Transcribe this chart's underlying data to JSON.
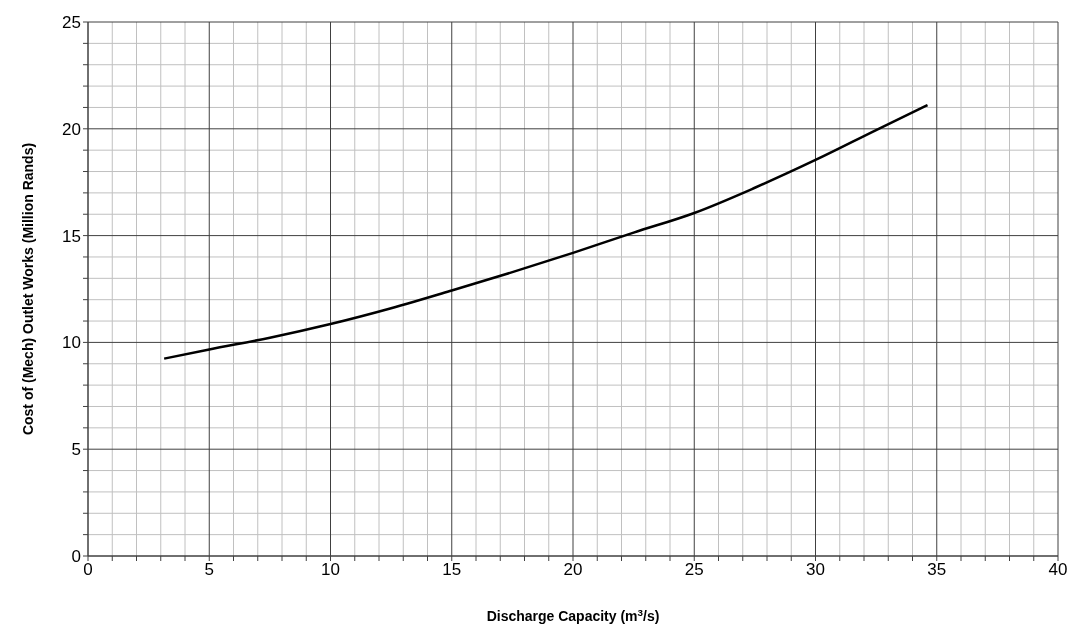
{
  "chart_data": {
    "type": "line",
    "xlabel": "Discharge Capacity (m$^{3}$/s)",
    "ylabel": "Cost of (Mech) Outlet Works (Million Rands)",
    "x": [
      3.14,
      5,
      7.5,
      10,
      12.5,
      15,
      17.5,
      20,
      22.5,
      25,
      27.5,
      30,
      32.5,
      34.62
    ],
    "series": [
      {
        "color": "#000000",
        "values": [
          9.24,
          9.67,
          10.22,
          10.86,
          11.6,
          12.43,
          13.29,
          14.19,
          15.14,
          16.06,
          17.24,
          18.54,
          19.94,
          21.11
        ]
      }
    ],
    "xlim": [
      0,
      40
    ],
    "xticks": [
      0,
      {
        "value": 1,
        "label": null
      },
      {
        "value": 2,
        "label": null
      },
      {
        "value": 3,
        "label": null
      },
      {
        "value": 4,
        "label": null
      },
      5,
      {
        "value": 6,
        "label": null
      },
      {
        "value": 7,
        "label": null
      },
      {
        "value": 8,
        "label": null
      },
      {
        "value": 9,
        "label": null
      },
      10,
      {
        "value": 11,
        "label": null
      },
      {
        "value": 12,
        "label": null
      },
      {
        "value": 13,
        "label": null
      },
      {
        "value": 14,
        "label": null
      },
      15,
      {
        "value": 16,
        "label": null
      },
      {
        "value": 17,
        "label": null
      },
      {
        "value": 18,
        "label": null
      },
      {
        "value": 19,
        "label": null
      },
      20,
      {
        "value": 21,
        "label": null
      },
      {
        "value": 22,
        "label": null
      },
      {
        "value": 23,
        "label": null
      },
      {
        "value": 24,
        "label": null
      },
      25,
      {
        "value": 26,
        "label": null
      },
      {
        "value": 27,
        "label": null
      },
      {
        "value": 28,
        "label": null
      },
      {
        "value": 29,
        "label": null
      },
      30,
      {
        "value": 31,
        "label": null
      },
      {
        "value": 32,
        "label": null
      },
      {
        "value": 33,
        "label": null
      },
      {
        "value": 34,
        "label": null
      },
      35,
      {
        "value": 36,
        "label": null
      },
      {
        "value": 37,
        "label": null
      },
      {
        "value": 38,
        "label": null
      },
      {
        "value": 39,
        "label": null
      },
      40
    ],
    "ylim": [
      0,
      25
    ],
    "yticks": [
      0,
      {
        "value": 1,
        "label": null
      },
      {
        "value": 2,
        "label": null
      },
      {
        "value": 3,
        "label": null
      },
      {
        "value": 4,
        "label": null
      },
      5,
      {
        "value": 6,
        "label": null
      },
      {
        "value": 7,
        "label": null
      },
      {
        "value": 8,
        "label": null
      },
      {
        "value": 9,
        "label": null
      },
      10,
      {
        "value": 11,
        "label": null
      },
      {
        "value": 12,
        "label": null
      },
      {
        "value": 13,
        "label": null
      },
      {
        "value": 14,
        "label": null
      },
      15,
      {
        "value": 16,
        "label": null
      },
      {
        "value": 17,
        "label": null
      },
      {
        "value": 18,
        "label": null
      },
      {
        "value": 19,
        "label": null
      },
      20,
      {
        "value": 21,
        "label": null
      },
      {
        "value": 22,
        "label": null
      },
      {
        "value": 23,
        "label": null
      },
      {
        "value": 24,
        "label": null
      },
      25
    ],
    "grid": true,
    "legend": false,
    "marker": "none",
    "line_style": "solid"
  }
}
